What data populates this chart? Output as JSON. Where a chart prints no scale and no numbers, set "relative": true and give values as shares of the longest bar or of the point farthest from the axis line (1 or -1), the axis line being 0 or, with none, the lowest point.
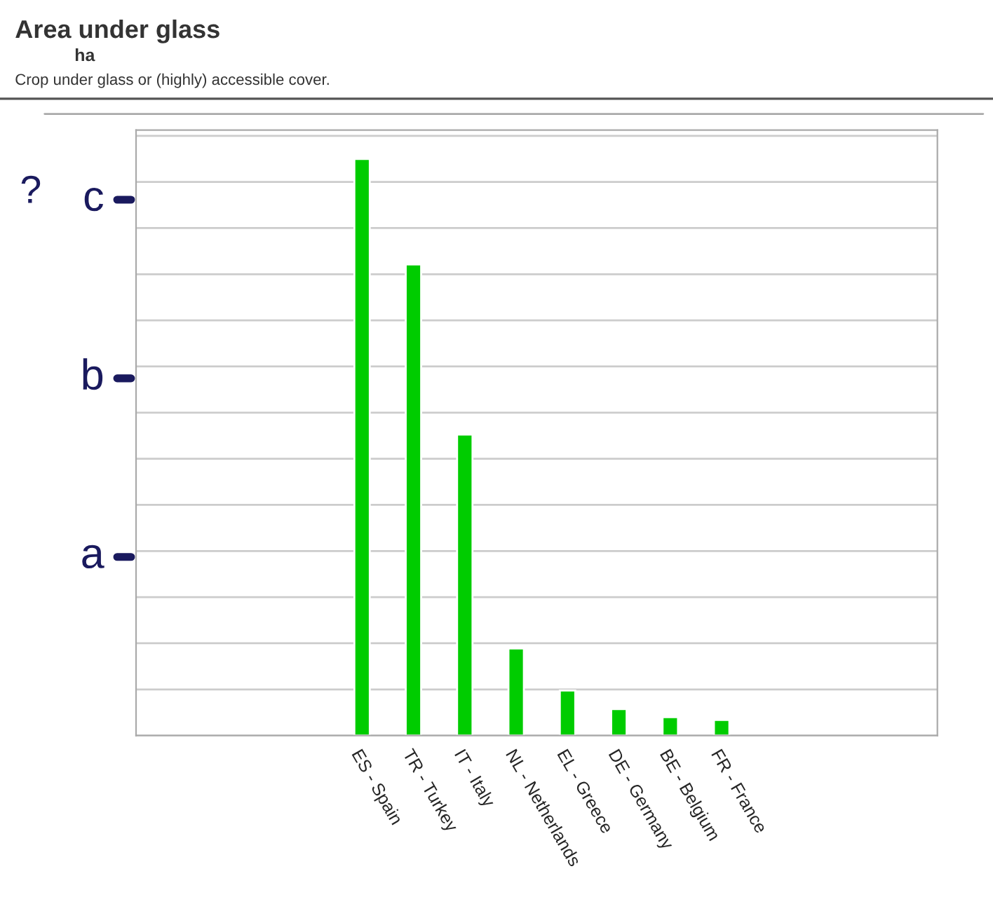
{
  "chart_data": {
    "type": "bar",
    "title": "Area under glass",
    "subtitle": "ha",
    "categories": [
      "ES - Spain",
      "TR - Turkey",
      "IT - Italy",
      "NL - Netherlands",
      "EL - Greece",
      "DE - Germany",
      "BE - Belgium",
      "FR - France"
    ],
    "values": [
      1,
      0.817,
      0.522,
      0.151,
      0.078,
      0.046,
      0.032,
      0.027
    ],
    "color": "#00cc00",
    "relative": true,
    "grid": "y",
    "annotations": [
      "Crop under glass or (highly) accessible cover.",
      "?",
      "a",
      "b",
      "c"
    ]
  }
}
